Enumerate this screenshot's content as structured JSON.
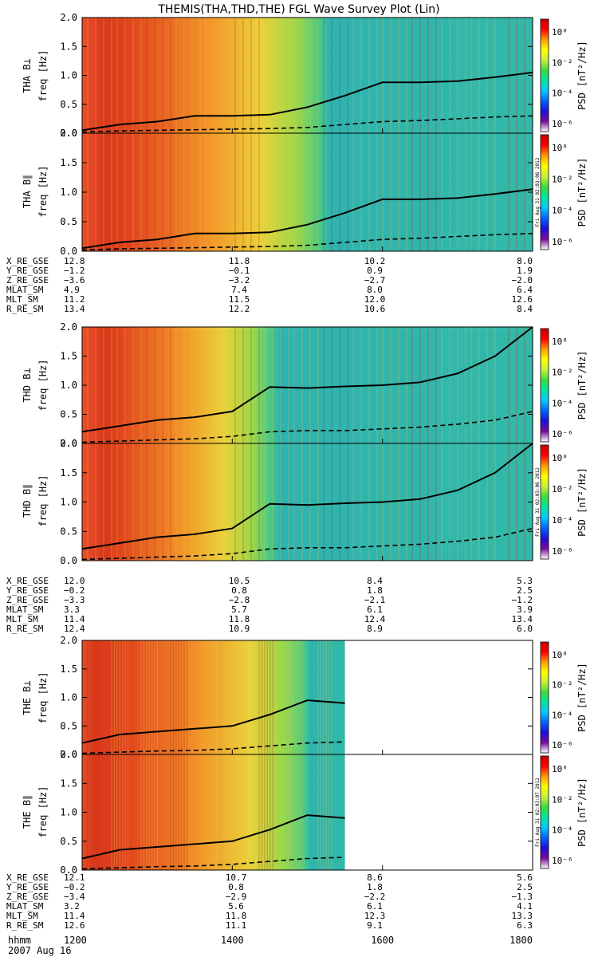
{
  "title": "THEMIS(THA,THD,THE) FGL Wave Survey Plot (Lin)",
  "colorbar": {
    "label": "PSD [nT²/Hz]",
    "tick_labels": [
      "10⁰",
      "10⁻²",
      "10⁻⁴",
      "10⁻⁶"
    ],
    "stops": [
      "#ffffff",
      "#7a0b9e",
      "#1e0fd8",
      "#0064ff",
      "#00c8ff",
      "#00e6a0",
      "#3cdc3c",
      "#c8f03c",
      "#ffff00",
      "#ff9a00",
      "#ff0000",
      "#c80000"
    ]
  },
  "x_axis": {
    "label_row": "hhmm",
    "tick_labels": [
      "1200",
      "1400",
      "1600",
      "1800"
    ],
    "date": "2007 Aug 16"
  },
  "y_axis": {
    "label": "freq [Hz]",
    "tick_labels": [
      "0.0",
      "0.5",
      "1.0",
      "1.5",
      "2.0"
    ],
    "range": [
      0,
      2
    ]
  },
  "panels": [
    {
      "name": "THA B⊥",
      "ylabel": "THA B⊥",
      "stamp": ""
    },
    {
      "name": "THA B∥",
      "ylabel": "THA B∥",
      "stamp": "Fri Aug 31 02:03:06 2012"
    },
    {
      "name": "THD B⊥",
      "ylabel": "THD B⊥",
      "stamp": ""
    },
    {
      "name": "THD B∥",
      "ylabel": "THD B∥",
      "stamp": "Fri Aug 31 02:03:06 2012"
    },
    {
      "name": "THE B⊥",
      "ylabel": "THE B⊥",
      "stamp": ""
    },
    {
      "name": "THE B∥",
      "ylabel": "THE B∥",
      "stamp": "Fri Aug 31 02:03:07 2012"
    }
  ],
  "ephemeris": [
    {
      "probe": "THA",
      "rows": [
        {
          "label": "X_RE_GSE",
          "values": [
            "12.8",
            "11.8",
            "10.2",
            "8.0"
          ]
        },
        {
          "label": "Y_RE_GSE",
          "values": [
            "−1.2",
            "−0.1",
            "0.9",
            "1.9"
          ]
        },
        {
          "label": "Z_RE_GSE",
          "values": [
            "−3.6",
            "−3.2",
            "−2.7",
            "−2.0"
          ]
        },
        {
          "label": "MLAT_SM",
          "values": [
            "4.9",
            "7.4",
            "8.0",
            "6.4"
          ]
        },
        {
          "label": "MLT_SM",
          "values": [
            "11.2",
            "11.5",
            "12.0",
            "12.6"
          ]
        },
        {
          "label": "R_RE_SM",
          "values": [
            "13.4",
            "12.2",
            "10.6",
            "8.4"
          ]
        }
      ]
    },
    {
      "probe": "THD",
      "rows": [
        {
          "label": "X_RE_GSE",
          "values": [
            "12.0",
            "10.5",
            "8.4",
            "5.3"
          ]
        },
        {
          "label": "Y_RE_GSE",
          "values": [
            "−0.2",
            "0.8",
            "1.8",
            "2.5"
          ]
        },
        {
          "label": "Z_RE_GSE",
          "values": [
            "−3.3",
            "−2.8",
            "−2.1",
            "−1.2"
          ]
        },
        {
          "label": "MLAT_SM",
          "values": [
            "3.3",
            "5.7",
            "6.1",
            "3.9"
          ]
        },
        {
          "label": "MLT_SM",
          "values": [
            "11.4",
            "11.8",
            "12.4",
            "13.4"
          ]
        },
        {
          "label": "R_RE_SM",
          "values": [
            "12.4",
            "10.9",
            "8.9",
            "6.0"
          ]
        }
      ]
    },
    {
      "probe": "THE",
      "rows": [
        {
          "label": "X_RE_GSE",
          "values": [
            "12.1",
            "10.7",
            "8.6",
            "5.6"
          ]
        },
        {
          "label": "Y_RE_GSE",
          "values": [
            "−0.2",
            "0.8",
            "1.8",
            "2.5"
          ]
        },
        {
          "label": "Z_RE_GSE",
          "values": [
            "−3.4",
            "−2.9",
            "−2.2",
            "−1.3"
          ]
        },
        {
          "label": "MLAT_SM",
          "values": [
            "3.2",
            "5.6",
            "6.1",
            "4.1"
          ]
        },
        {
          "label": "MLT_SM",
          "values": [
            "11.4",
            "11.8",
            "12.3",
            "13.3"
          ]
        },
        {
          "label": "R_RE_SM",
          "values": [
            "12.6",
            "11.1",
            "9.1",
            "6.3"
          ]
        }
      ]
    }
  ],
  "chart_data": [
    {
      "type": "heatmap",
      "panel": "THA B⊥",
      "title": "THA B⊥",
      "ylabel": "freq [Hz]",
      "ylim": [
        0,
        2
      ],
      "x": [
        1200,
        1230,
        1300,
        1330,
        1400,
        1430,
        1500,
        1530,
        1600,
        1630,
        1700,
        1730,
        1800
      ],
      "data_end": 1800,
      "solid_curve": [
        0.05,
        0.15,
        0.2,
        0.3,
        0.3,
        0.32,
        0.45,
        0.65,
        0.88,
        0.88,
        0.9,
        0.97,
        1.05
      ],
      "dashed_curve": [
        0.02,
        0.04,
        0.05,
        0.06,
        0.07,
        0.08,
        0.1,
        0.15,
        0.2,
        0.22,
        0.25,
        0.28,
        0.3
      ]
    },
    {
      "type": "heatmap",
      "panel": "THA B∥",
      "title": "THA B∥",
      "ylabel": "freq [Hz]",
      "ylim": [
        0,
        2
      ],
      "x": [
        1200,
        1230,
        1300,
        1330,
        1400,
        1430,
        1500,
        1530,
        1600,
        1630,
        1700,
        1730,
        1800
      ],
      "data_end": 1800,
      "solid_curve": [
        0.05,
        0.15,
        0.2,
        0.3,
        0.3,
        0.32,
        0.45,
        0.65,
        0.88,
        0.88,
        0.9,
        0.97,
        1.05
      ],
      "dashed_curve": [
        0.02,
        0.04,
        0.05,
        0.06,
        0.07,
        0.08,
        0.1,
        0.15,
        0.2,
        0.22,
        0.25,
        0.28,
        0.3
      ]
    },
    {
      "type": "heatmap",
      "panel": "THD B⊥",
      "title": "THD B⊥",
      "ylabel": "freq [Hz]",
      "ylim": [
        0,
        2
      ],
      "x": [
        1200,
        1230,
        1300,
        1330,
        1400,
        1430,
        1500,
        1530,
        1600,
        1630,
        1700,
        1730,
        1800
      ],
      "data_end": 1800,
      "solid_curve": [
        0.2,
        0.3,
        0.4,
        0.45,
        0.55,
        0.97,
        0.95,
        0.98,
        1.0,
        1.05,
        1.2,
        1.5,
        2.0
      ],
      "dashed_curve": [
        0.02,
        0.04,
        0.06,
        0.08,
        0.12,
        0.2,
        0.22,
        0.22,
        0.25,
        0.28,
        0.33,
        0.4,
        0.55
      ]
    },
    {
      "type": "heatmap",
      "panel": "THD B∥",
      "title": "THD B∥",
      "ylabel": "freq [Hz]",
      "ylim": [
        0,
        2
      ],
      "x": [
        1200,
        1230,
        1300,
        1330,
        1400,
        1430,
        1500,
        1530,
        1600,
        1630,
        1700,
        1730,
        1800
      ],
      "data_end": 1800,
      "solid_curve": [
        0.2,
        0.3,
        0.4,
        0.45,
        0.55,
        0.97,
        0.95,
        0.98,
        1.0,
        1.05,
        1.2,
        1.5,
        2.0
      ],
      "dashed_curve": [
        0.02,
        0.04,
        0.06,
        0.08,
        0.12,
        0.2,
        0.22,
        0.22,
        0.25,
        0.28,
        0.33,
        0.4,
        0.55
      ]
    },
    {
      "type": "heatmap",
      "panel": "THE B⊥",
      "title": "THE B⊥",
      "ylabel": "freq [Hz]",
      "ylim": [
        0,
        2
      ],
      "x": [
        1200,
        1230,
        1300,
        1330,
        1400,
        1430,
        1500,
        1530
      ],
      "data_end": 1530,
      "solid_curve": [
        0.2,
        0.35,
        0.4,
        0.45,
        0.5,
        0.7,
        0.95,
        0.9
      ],
      "dashed_curve": [
        0.02,
        0.04,
        0.06,
        0.07,
        0.1,
        0.15,
        0.2,
        0.22
      ]
    },
    {
      "type": "heatmap",
      "panel": "THE B∥",
      "title": "THE B∥",
      "ylabel": "freq [Hz]",
      "ylim": [
        0,
        2
      ],
      "x": [
        1200,
        1230,
        1300,
        1330,
        1400,
        1430,
        1500,
        1530
      ],
      "data_end": 1530,
      "solid_curve": [
        0.2,
        0.35,
        0.4,
        0.45,
        0.5,
        0.7,
        0.95,
        0.9
      ],
      "dashed_curve": [
        0.02,
        0.04,
        0.06,
        0.07,
        0.1,
        0.15,
        0.2,
        0.22
      ]
    }
  ]
}
